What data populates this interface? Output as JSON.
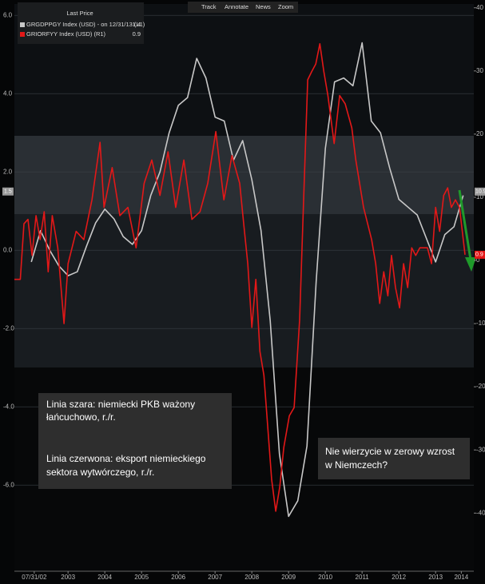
{
  "chart_data": {
    "type": "line",
    "toolbar": [
      "Track",
      "Annotate",
      "News",
      "Zoom"
    ],
    "legend_header": "Last Price",
    "xlim": [
      2002.04,
      2014.54
    ],
    "xticks": [
      {
        "value": 2002.58,
        "label": "07/31/02"
      },
      {
        "value": 2003.5,
        "label": "2003"
      },
      {
        "value": 2004.5,
        "label": "2004"
      },
      {
        "value": 2005.5,
        "label": "2005"
      },
      {
        "value": 2006.5,
        "label": "2006"
      },
      {
        "value": 2007.5,
        "label": "2007"
      },
      {
        "value": 2008.5,
        "label": "2008"
      },
      {
        "value": 2009.5,
        "label": "2009"
      },
      {
        "value": 2010.5,
        "label": "2010"
      },
      {
        "value": 2011.5,
        "label": "2011"
      },
      {
        "value": 2012.5,
        "label": "2012"
      },
      {
        "value": 2013.5,
        "label": "2013"
      },
      {
        "value": 2014.2,
        "label": "2014"
      }
    ],
    "ylim": [
      -8.2,
      6.29
    ],
    "yticks": [
      {
        "value": 6,
        "label": "6.0"
      },
      {
        "value": 4,
        "label": "4.0"
      },
      {
        "value": 2,
        "label": "2.0"
      },
      {
        "value": 0,
        "label": "0.0"
      },
      {
        "value": -2,
        "label": "-2.0"
      },
      {
        "value": -4,
        "label": "-4.0"
      },
      {
        "value": -6,
        "label": "-6.0"
      }
    ],
    "y2lim": [
      -49.2,
      40.6
    ],
    "y2ticks": [
      40,
      30,
      20,
      10,
      0,
      -10,
      -20,
      -30,
      -40
    ],
    "grid": true,
    "series": [
      {
        "name": "GRGDPPGY Index (USD) - on 12/31/13  (L1)",
        "last": "1.4",
        "color": "#c8c8c8",
        "axis": "y",
        "x": [
          2002.5,
          2002.75,
          2003.0,
          2003.25,
          2003.5,
          2003.75,
          2004.0,
          2004.25,
          2004.5,
          2004.75,
          2005.0,
          2005.25,
          2005.5,
          2005.75,
          2006.0,
          2006.25,
          2006.5,
          2006.75,
          2007.0,
          2007.25,
          2007.5,
          2007.75,
          2008.0,
          2008.25,
          2008.5,
          2008.75,
          2009.0,
          2009.25,
          2009.5,
          2009.75,
          2010.0,
          2010.25,
          2010.5,
          2010.75,
          2011.0,
          2011.25,
          2011.5,
          2011.75,
          2012.0,
          2012.25,
          2012.5,
          2012.75,
          2013.0,
          2013.25,
          2013.5,
          2013.75,
          2014.0,
          2014.25
        ],
        "values": [
          -0.3,
          0.5,
          0.0,
          -0.4,
          -0.65,
          -0.55,
          0.1,
          0.7,
          1.05,
          0.8,
          0.35,
          0.15,
          0.5,
          1.4,
          2.0,
          3.0,
          3.7,
          3.9,
          4.9,
          4.4,
          3.4,
          3.3,
          2.3,
          2.8,
          1.8,
          0.5,
          -1.8,
          -5.2,
          -6.8,
          -6.4,
          -5.0,
          -0.8,
          2.6,
          4.3,
          4.4,
          4.2,
          5.3,
          3.3,
          3.0,
          2.1,
          1.3,
          1.1,
          0.9,
          0.3,
          -0.3,
          0.4,
          0.6,
          1.4
        ]
      },
      {
        "name": "GRIORFYY Index (USD)  (R1)",
        "last": "0.9",
        "color": "#e31818",
        "axis": "y2",
        "x": [
          2002.04,
          2002.2,
          2002.3,
          2002.41,
          2002.52,
          2002.63,
          2002.74,
          2002.85,
          2002.96,
          2003.07,
          2003.22,
          2003.39,
          2003.5,
          2003.72,
          2003.93,
          2004.15,
          2004.37,
          2004.48,
          2004.7,
          2004.91,
          2005.13,
          2005.35,
          2005.57,
          2005.78,
          2006.0,
          2006.22,
          2006.43,
          2006.65,
          2006.87,
          2007.09,
          2007.3,
          2007.52,
          2007.74,
          2007.96,
          2008.17,
          2008.28,
          2008.39,
          2008.5,
          2008.61,
          2008.72,
          2008.83,
          2009.04,
          2009.15,
          2009.26,
          2009.37,
          2009.52,
          2009.65,
          2009.8,
          2009.91,
          2010.02,
          2010.13,
          2010.24,
          2010.35,
          2010.46,
          2010.57,
          2010.74,
          2010.89,
          2011.04,
          2011.22,
          2011.33,
          2011.54,
          2011.76,
          2011.87,
          2011.98,
          2012.09,
          2012.2,
          2012.3,
          2012.41,
          2012.52,
          2012.63,
          2012.74,
          2012.85,
          2012.96,
          2013.07,
          2013.28,
          2013.39,
          2013.5,
          2013.61,
          2013.72,
          2013.83,
          2013.93,
          2014.04,
          2014.15,
          2014.3
        ],
        "values": [
          -3.0,
          -3.0,
          5.8,
          6.5,
          0.8,
          7.1,
          3.3,
          7.7,
          -1.8,
          7.1,
          2.0,
          -10.0,
          -0.5,
          4.6,
          3.3,
          9.6,
          18.7,
          8.4,
          14.7,
          7.1,
          8.4,
          2.0,
          12.2,
          15.9,
          10.3,
          17.2,
          8.4,
          15.9,
          6.5,
          7.7,
          12.2,
          20.4,
          9.6,
          16.6,
          12.2,
          5.8,
          -0.5,
          -10.6,
          -3.0,
          -14.4,
          -18.2,
          -34.7,
          -39.7,
          -35.9,
          -29.6,
          -24.6,
          -23.3,
          -9.4,
          9.6,
          28.6,
          29.9,
          31.1,
          34.3,
          29.9,
          26.1,
          18.5,
          26.1,
          24.8,
          21.0,
          15.9,
          8.4,
          3.3,
          -0.5,
          -6.8,
          -1.8,
          -5.6,
          0.8,
          -4.3,
          -7.5,
          -0.5,
          -4.3,
          2.0,
          0.8,
          2.0,
          2.0,
          -0.5,
          8.4,
          4.6,
          10.3,
          11.5,
          8.4,
          9.6,
          8.4,
          0.9
        ]
      }
    ],
    "price_tags": [
      {
        "value": 1.5,
        "label": "1.5",
        "axis": "y",
        "color": "#9a9a9a"
      },
      {
        "value": 10.9,
        "label": "10.9",
        "axis": "y2",
        "color": "#9a9a9a"
      },
      {
        "value": 0.9,
        "label": "0.9",
        "axis": "y2",
        "color": "#e31818"
      }
    ],
    "annotations": [
      [
        "Linia szara: niemiecki PKB ważony",
        "łańcuchowo, r./r."
      ],
      [
        "Linia czerwona: eksport niemieckiego",
        "sektora wytwórczego, r./r."
      ],
      [
        "Nie wierzycie w zerowy wzrost",
        "w Niemczech?"
      ]
    ]
  }
}
